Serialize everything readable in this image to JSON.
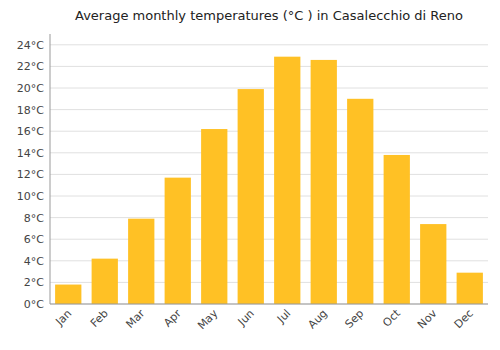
{
  "chart_data": {
    "type": "bar",
    "title": "Average monthly temperatures (°C ) in Casalecchio di Reno",
    "categories": [
      "Jan",
      "Feb",
      "Mar",
      "Apr",
      "May",
      "Jun",
      "Jul",
      "Aug",
      "Sep",
      "Oct",
      "Nov",
      "Dec"
    ],
    "values": [
      1.8,
      4.2,
      7.9,
      11.7,
      16.2,
      19.9,
      22.9,
      22.6,
      19.0,
      13.8,
      7.4,
      2.9
    ],
    "color": "#FFC125",
    "ylim": [
      0,
      25.0
    ],
    "yticks": [
      {
        "value": 0,
        "label": "0°C"
      },
      {
        "value": 2,
        "label": "2°C"
      },
      {
        "value": 4,
        "label": "4°C"
      },
      {
        "value": 6,
        "label": "6°C"
      },
      {
        "value": 8,
        "label": "8°C"
      },
      {
        "value": 10,
        "label": "10°C"
      },
      {
        "value": 12,
        "label": "12°C"
      },
      {
        "value": 14,
        "label": "14°C"
      },
      {
        "value": 16,
        "label": "16°C"
      },
      {
        "value": 18,
        "label": "18°C"
      },
      {
        "value": 20,
        "label": "20°C"
      },
      {
        "value": 22,
        "label": "22°C"
      },
      {
        "value": 24,
        "label": "24°C"
      }
    ],
    "grid": true
  }
}
